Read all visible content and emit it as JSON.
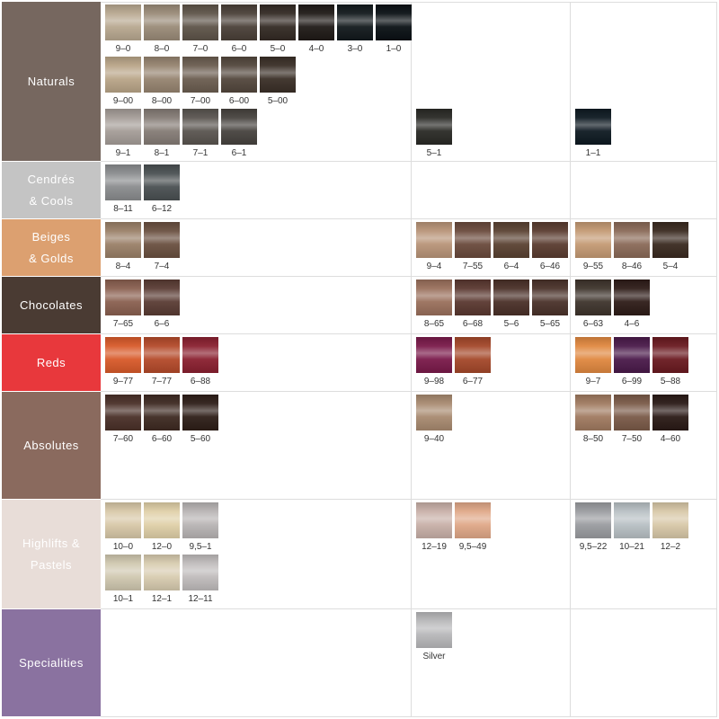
{
  "rows": [
    {
      "label": [
        "Naturals"
      ],
      "color": "#76675f",
      "cells": [
        [
          [
            {
              "code": "9–0",
              "color": "#b8a890"
            },
            {
              "code": "8–0",
              "color": "#9a8b78"
            },
            {
              "code": "7–0",
              "color": "#5e5449"
            },
            {
              "code": "6–0",
              "color": "#4a4038"
            },
            {
              "code": "5–0",
              "color": "#332a24"
            },
            {
              "code": "4–0",
              "color": "#1f1a17"
            },
            {
              "code": "3–0",
              "color": "#12191c"
            },
            {
              "code": "1–0",
              "color": "#0a1014"
            }
          ],
          [
            {
              "code": "9–00",
              "color": "#b9a588"
            },
            {
              "code": "8–00",
              "color": "#968470"
            },
            {
              "code": "7–00",
              "color": "#6b5d50"
            },
            {
              "code": "6–00",
              "color": "#53473d"
            },
            {
              "code": "5–00",
              "color": "#3a2f27"
            }
          ],
          [
            {
              "code": "9–1",
              "color": "#a59d98"
            },
            {
              "code": "8–1",
              "color": "#857c76"
            },
            {
              "code": "7–1",
              "color": "#5a5550"
            },
            {
              "code": "6–1",
              "color": "#47433f"
            }
          ]
        ],
        [
          [],
          [],
          [
            {
              "code": "5–1",
              "color": "#2a2a26"
            }
          ]
        ],
        [
          [],
          [],
          [
            {
              "code": "1–1",
              "color": "#0e1a22"
            }
          ]
        ]
      ]
    },
    {
      "label": [
        "Cendrés",
        "& Cools"
      ],
      "color": "#c4c4c4",
      "cells": [
        [
          [
            {
              "code": "8–11",
              "color": "#8a8c8e"
            },
            {
              "code": "6–12",
              "color": "#4a5052"
            }
          ]
        ],
        [],
        []
      ]
    },
    {
      "label": [
        "Beiges",
        "& Golds"
      ],
      "color": "#dca070",
      "cells": [
        [
          [
            {
              "code": "8–4",
              "color": "#9a8068"
            },
            {
              "code": "7–4",
              "color": "#6a5040"
            }
          ]
        ],
        [
          [
            {
              "code": "9–4",
              "color": "#b89478"
            },
            {
              "code": "7–55",
              "color": "#6a4a3c"
            },
            {
              "code": "6–4",
              "color": "#5a4232"
            },
            {
              "code": "6–46",
              "color": "#5a3c30"
            }
          ]
        ],
        [
          [
            {
              "code": "9–55",
              "color": "#c49a74"
            },
            {
              "code": "8–46",
              "color": "#8a6a58"
            },
            {
              "code": "5–4",
              "color": "#3a2a20"
            }
          ]
        ]
      ]
    },
    {
      "label": [
        "Chocolates"
      ],
      "color": "#4a3b33",
      "cells": [
        [
          [
            {
              "code": "7–65",
              "color": "#8a6050"
            },
            {
              "code": "6–6",
              "color": "#5a3c34"
            }
          ]
        ],
        [
          [
            {
              "code": "8–65",
              "color": "#9a705c"
            },
            {
              "code": "6–68",
              "color": "#5a3830"
            },
            {
              "code": "5–6",
              "color": "#4a3028"
            },
            {
              "code": "5–65",
              "color": "#4a322a"
            }
          ]
        ],
        [
          [
            {
              "code": "6–63",
              "color": "#3e342c"
            },
            {
              "code": "4–6",
              "color": "#2e1c18"
            }
          ]
        ]
      ]
    },
    {
      "label": [
        "Reds"
      ],
      "color": "#e8383c",
      "cells": [
        [
          [
            {
              "code": "9–77",
              "color": "#d85a2a"
            },
            {
              "code": "7–77",
              "color": "#b44a2a"
            },
            {
              "code": "6–88",
              "color": "#8a2030"
            }
          ]
        ],
        [
          [
            {
              "code": "9–98",
              "color": "#7a1a4a"
            },
            {
              "code": "6–77",
              "color": "#a4482a"
            }
          ]
        ],
        [
          [
            {
              "code": "9–7",
              "color": "#e08840"
            },
            {
              "code": "6–99",
              "color": "#4a1a4a"
            },
            {
              "code": "5–88",
              "color": "#6a1a20"
            }
          ]
        ]
      ]
    },
    {
      "label": [
        "Absolutes"
      ],
      "color": "#8a6a5e",
      "cells": [
        [
          [
            {
              "code": "7–60",
              "color": "#4a3028"
            },
            {
              "code": "6–60",
              "color": "#3e2a22"
            },
            {
              "code": "5–60",
              "color": "#2e1e18"
            }
          ]
        ],
        [
          [
            {
              "code": "9–40",
              "color": "#a88a70"
            }
          ]
        ],
        [
          [
            {
              "code": "8–50",
              "color": "#a07a60"
            },
            {
              "code": "7–50",
              "color": "#7a5a48"
            },
            {
              "code": "4–60",
              "color": "#2a1a16"
            }
          ]
        ]
      ]
    },
    {
      "label": [
        "Highlifts &",
        "Pastels"
      ],
      "color": "#e8ddd8",
      "cells": [
        [
          [
            {
              "code": "10–0",
              "color": "#d8c8a8"
            },
            {
              "code": "12–0",
              "color": "#e0d0a8"
            },
            {
              "code": "9,5–1",
              "color": "#b8b4b4"
            }
          ],
          [
            {
              "code": "10–1",
              "color": "#d0c8b0"
            },
            {
              "code": "12–1",
              "color": "#d8ccb0"
            },
            {
              "code": "12–11",
              "color": "#c0bcbc"
            }
          ]
        ],
        [
          [
            {
              "code": "12–19",
              "color": "#c8b0a8"
            },
            {
              "code": "9,5–49",
              "color": "#e0a888"
            }
          ]
        ],
        [
          [
            {
              "code": "9,5–22",
              "color": "#9a9ca0"
            },
            {
              "code": "10–21",
              "color": "#b8c0c4"
            },
            {
              "code": "12–2",
              "color": "#d8c8a8"
            }
          ]
        ]
      ]
    },
    {
      "label": [
        "Specialities"
      ],
      "color": "#8a72a0",
      "cells": [
        [],
        [
          [
            {
              "code": "Silver",
              "color": "#b8b8ba"
            }
          ]
        ],
        []
      ]
    }
  ]
}
